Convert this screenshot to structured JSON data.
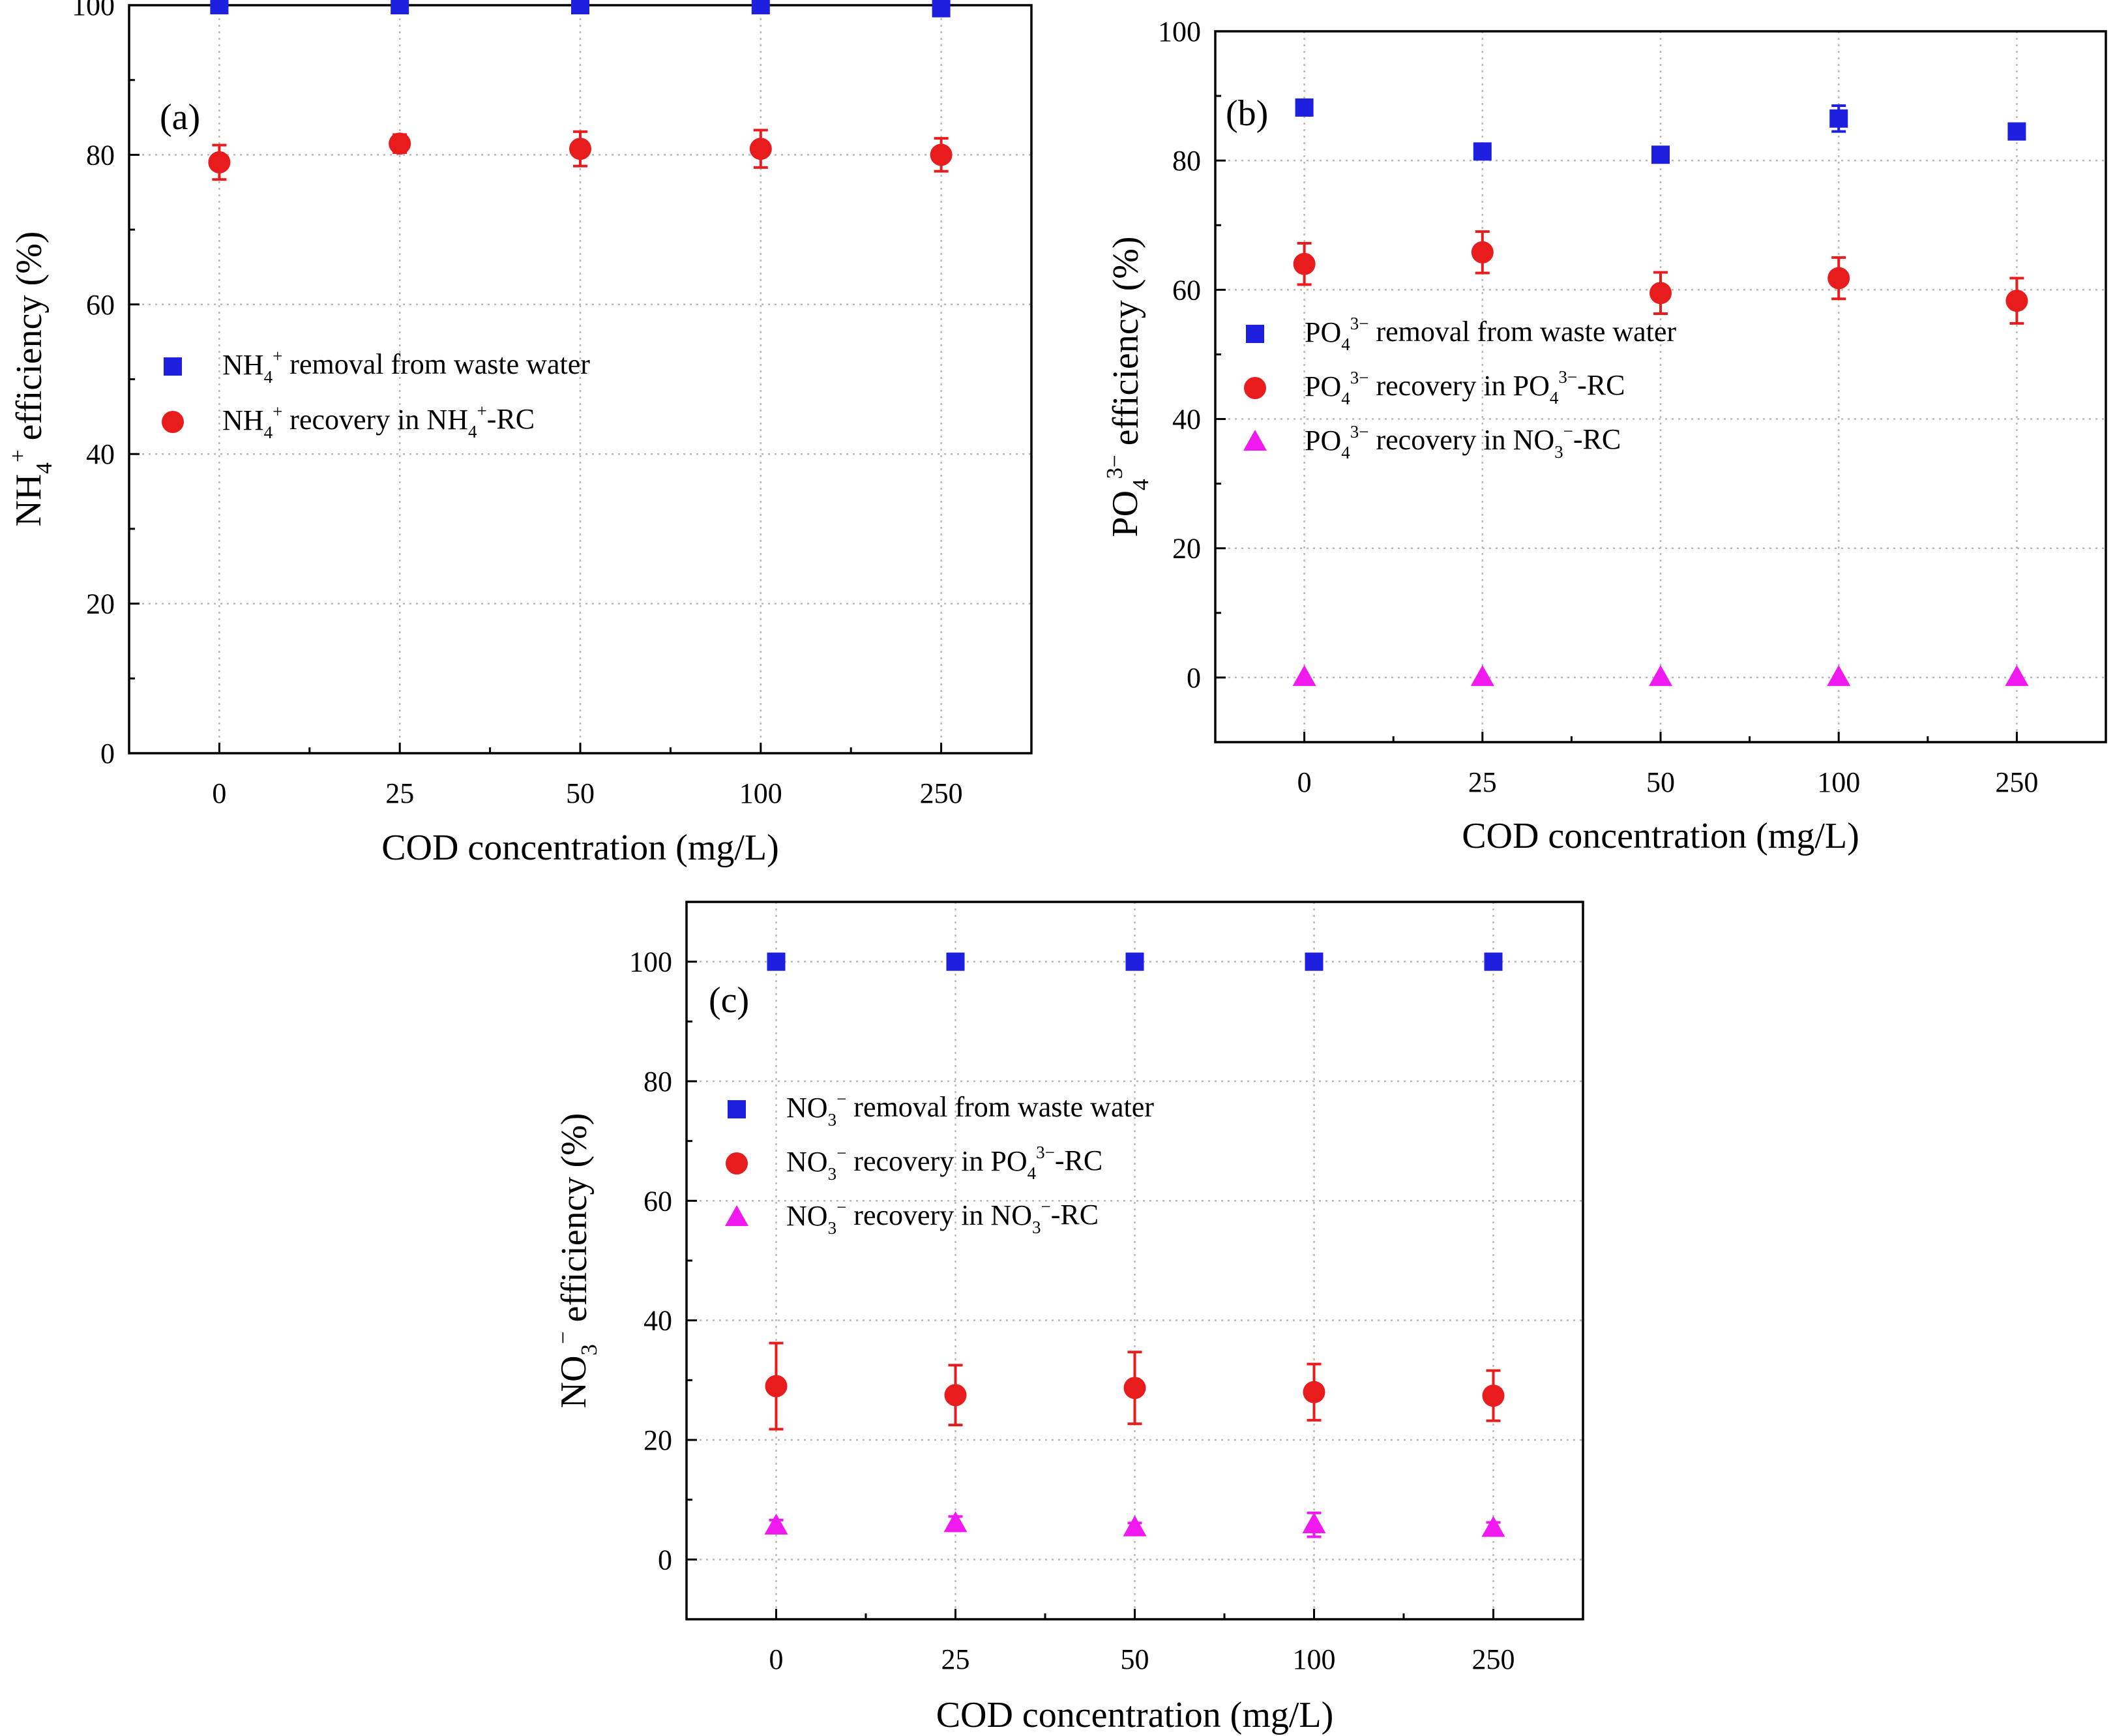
{
  "chart_data": [
    {
      "id": "a",
      "type": "scatter",
      "panel_label": "(a)",
      "xlabel": "COD concentration (mg/L)",
      "ylabel": "NH4+ efficiency (%)",
      "categories": [
        "0",
        "25",
        "50",
        "100",
        "250"
      ],
      "ylim": [
        0,
        100
      ],
      "yticks": [
        "0",
        "20",
        "40",
        "60",
        "80",
        "100"
      ],
      "grid": true,
      "legend_position": "center-left",
      "series": [
        {
          "name": "NH4+ removal from waste water",
          "marker": "square",
          "color": "#1f1fe0",
          "values": [
            100,
            100,
            100,
            100,
            99.6
          ],
          "errors": [
            0,
            0,
            0,
            0,
            0
          ]
        },
        {
          "name": "NH4+ recovery in NH4+-RC",
          "marker": "circle",
          "color": "#e81c1c",
          "values": [
            79,
            81.5,
            80.8,
            80.8,
            80
          ],
          "errors": [
            2.3,
            1.2,
            2.3,
            2.5,
            2.2
          ]
        }
      ]
    },
    {
      "id": "b",
      "type": "scatter",
      "panel_label": "(b)",
      "xlabel": "COD concentration (mg/L)",
      "ylabel": "PO43− efficiency (%)",
      "categories": [
        "0",
        "25",
        "50",
        "100",
        "250"
      ],
      "ylim": [
        -10,
        100
      ],
      "yticks": [
        "0",
        "20",
        "40",
        "60",
        "80",
        "100"
      ],
      "grid": true,
      "legend_position": "center-left",
      "series": [
        {
          "name": "PO43− removal from waste water",
          "marker": "square",
          "color": "#1f1fe0",
          "values": [
            88.2,
            81.4,
            80.9,
            86.5,
            84.5
          ],
          "errors": [
            0,
            0,
            0,
            2.0,
            0
          ]
        },
        {
          "name": "PO43− recovery in PO43−-RC",
          "marker": "circle",
          "color": "#e81c1c",
          "values": [
            64,
            65.8,
            59.5,
            61.8,
            58.3
          ],
          "errors": [
            3.2,
            3.2,
            3.2,
            3.2,
            3.5
          ]
        },
        {
          "name": "PO43− recovery in NO3−-RC",
          "marker": "triangle",
          "color": "#f019f0",
          "values": [
            0,
            0,
            0,
            0,
            0
          ],
          "errors": [
            0,
            0,
            0,
            0,
            0
          ]
        }
      ]
    },
    {
      "id": "c",
      "type": "scatter",
      "panel_label": "(c)",
      "xlabel": "COD concentration (mg/L)",
      "ylabel": "NO3− efficiency (%)",
      "categories": [
        "0",
        "25",
        "50",
        "100",
        "250"
      ],
      "ylim": [
        -10,
        110
      ],
      "yticks": [
        "0",
        "20",
        "40",
        "60",
        "80",
        "100"
      ],
      "grid": true,
      "legend_position": "center-left",
      "series": [
        {
          "name": "NO3− removal from waste water",
          "marker": "square",
          "color": "#1f1fe0",
          "values": [
            100,
            100,
            100,
            100,
            100
          ],
          "errors": [
            0,
            0,
            0,
            0,
            0
          ]
        },
        {
          "name": "NO3− recovery in PO43−-RC",
          "marker": "circle",
          "color": "#e81c1c",
          "values": [
            29,
            27.5,
            28.7,
            28,
            27.4
          ],
          "errors": [
            7.2,
            5.0,
            6.0,
            4.7,
            4.2
          ]
        },
        {
          "name": "NO3− recovery in NO3−-RC",
          "marker": "triangle",
          "color": "#f019f0",
          "values": [
            5.6,
            6,
            5.3,
            5.8,
            5.2
          ],
          "errors": [
            1.0,
            1.2,
            0.8,
            2.0,
            1.0
          ]
        }
      ]
    }
  ]
}
